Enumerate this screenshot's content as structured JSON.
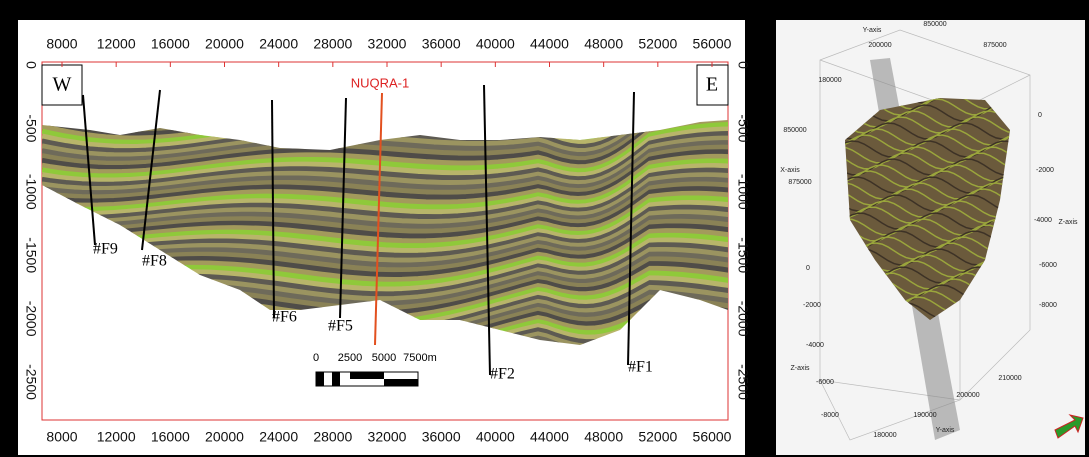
{
  "section": {
    "west": "W",
    "east": "E",
    "well": "NUQRA-1",
    "x_ticks": [
      8000,
      12000,
      16000,
      20000,
      24000,
      28000,
      32000,
      36000,
      40000,
      44000,
      48000,
      52000,
      56000
    ],
    "depth_ticks": [
      0,
      -500,
      -1000,
      -1500,
      -2000,
      -2500
    ],
    "faults": [
      "#F9",
      "#F8",
      "#F6",
      "#F5",
      "#F2",
      "#F1"
    ],
    "scale_labels": [
      "0",
      "2500",
      "5000",
      "7500m"
    ]
  },
  "model_3d": {
    "labels": [
      "Y-axis",
      "850000",
      "200000",
      "875000",
      "180000",
      "850000",
      "X-axis",
      "875000",
      "0",
      "-2000",
      "-4000",
      "Z-axis",
      "0",
      "-6000",
      "-2000",
      "-8000",
      "-4000",
      "Z-axis",
      "-6000",
      "210000",
      "-8000",
      "200000",
      "190000",
      "Y-axis",
      "180000"
    ]
  }
}
